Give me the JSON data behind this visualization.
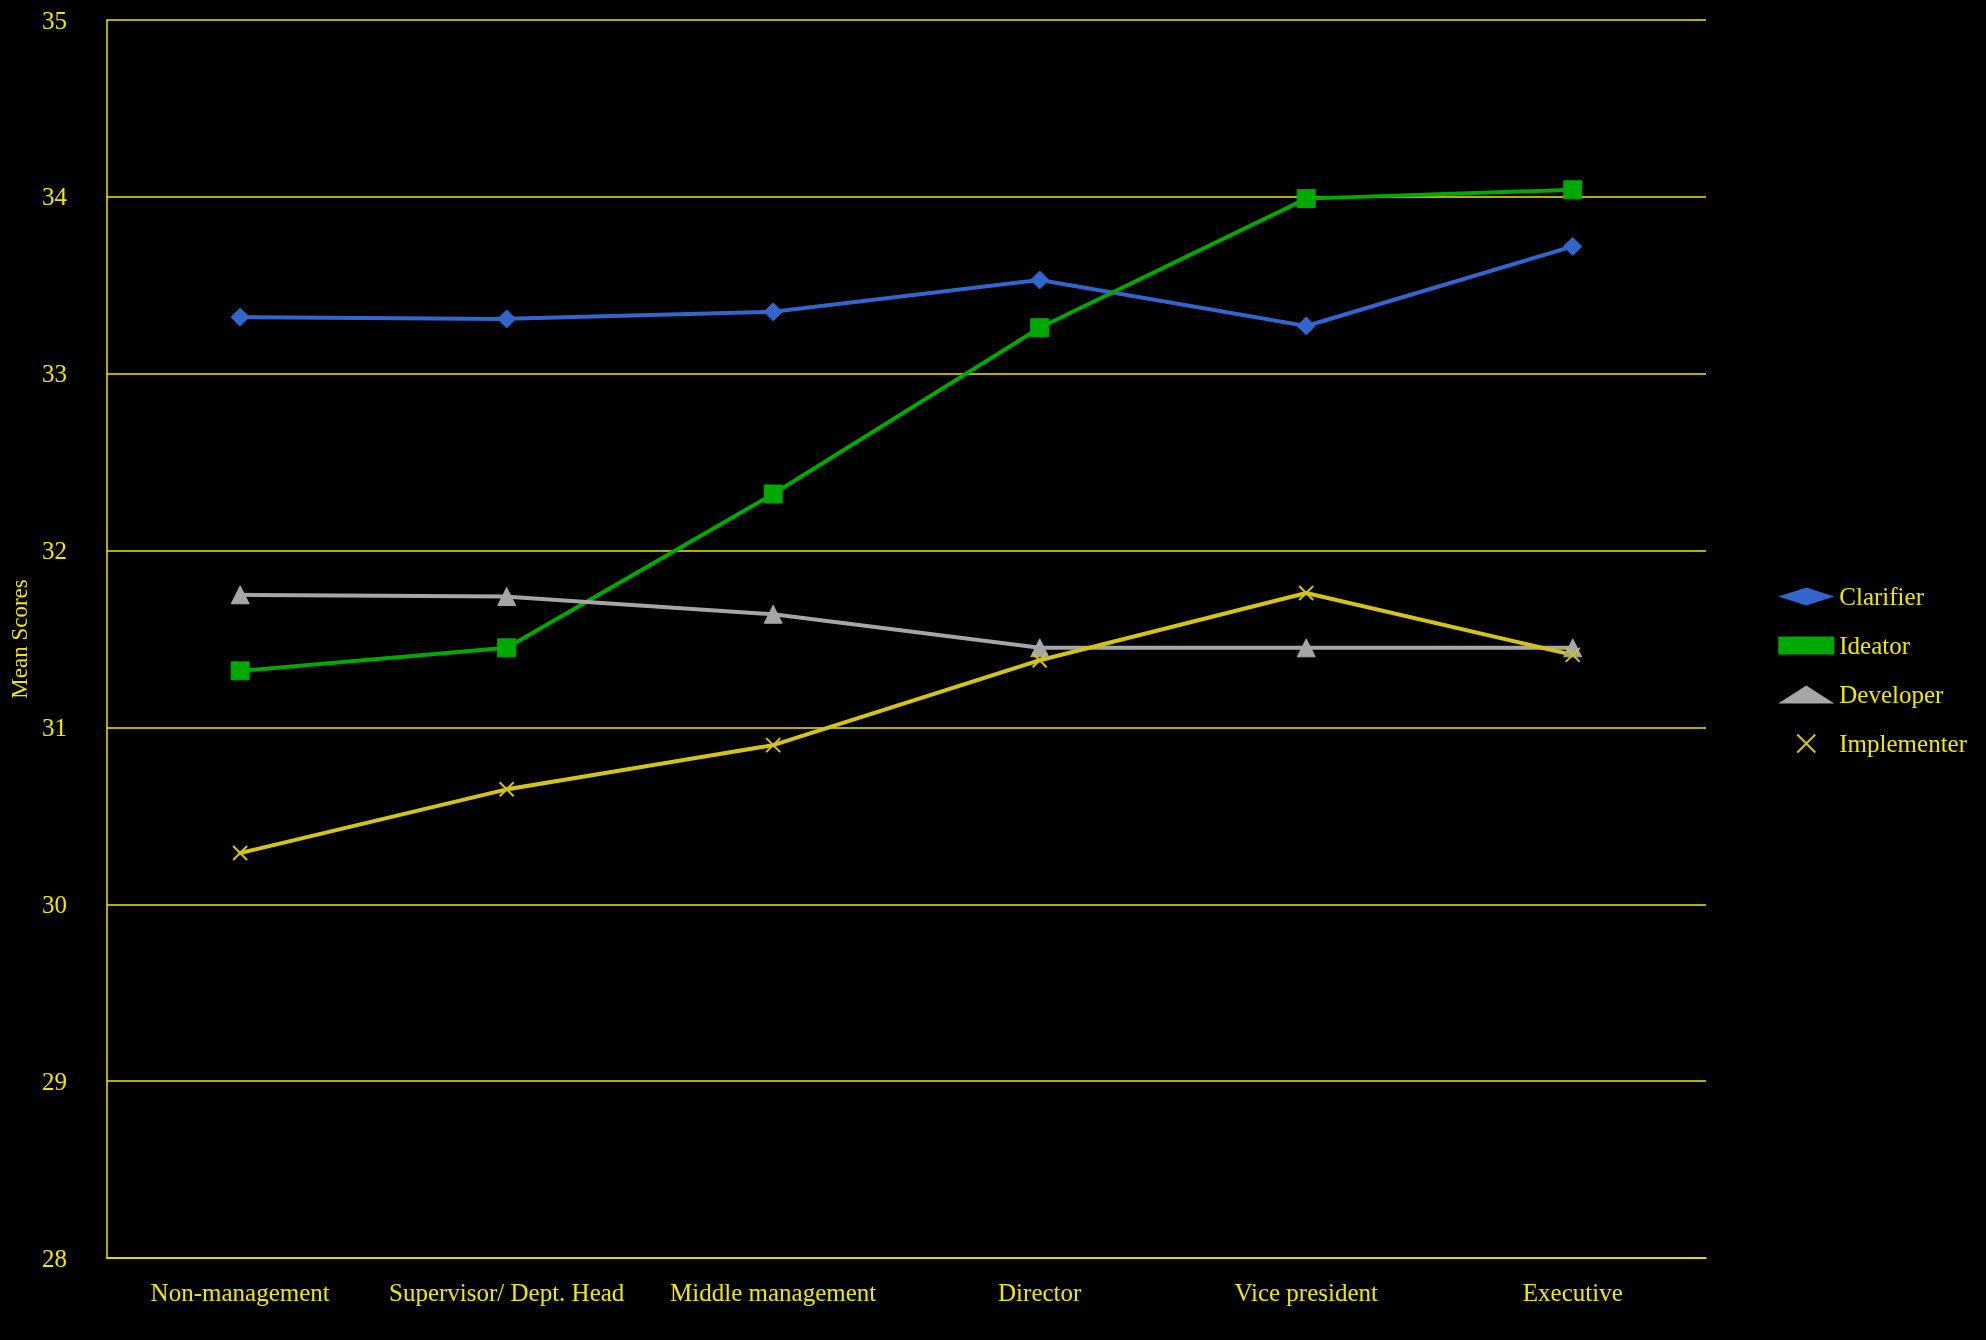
{
  "chart_data": {
    "type": "line",
    "ylabel": "Mean Scores",
    "categories": [
      "Non-management",
      "Supervisor/ Dept. Head",
      "Middle management",
      "Director",
      "Vice president",
      "Executive"
    ],
    "series": [
      {
        "name": "Clarifier",
        "color": "#3366cc",
        "marker": "diamond",
        "values": [
          33.32,
          33.31,
          33.35,
          33.53,
          33.27,
          33.72
        ]
      },
      {
        "name": "Ideator",
        "color": "#00a800",
        "marker": "square",
        "values": [
          31.32,
          31.45,
          32.32,
          33.26,
          33.99,
          34.04
        ]
      },
      {
        "name": "Developer",
        "color": "#a6a6a6",
        "marker": "triangle",
        "values": [
          31.75,
          31.74,
          31.64,
          31.45,
          31.45,
          31.45
        ]
      },
      {
        "name": "Implementer",
        "color": "#d4c41a",
        "marker": "cross",
        "values": [
          30.29,
          30.65,
          30.9,
          31.38,
          31.76,
          31.41
        ]
      }
    ],
    "ylim": [
      28,
      35
    ],
    "yticks": [
      28,
      29,
      30,
      31,
      32,
      33,
      34,
      35
    ],
    "grid": "y",
    "legend": "right",
    "line_style": "solid"
  }
}
